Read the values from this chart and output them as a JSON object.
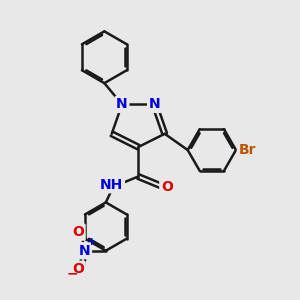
{
  "background_color": "#e8e8e8",
  "bond_color": "#1a1a1a",
  "bond_width": 1.8,
  "atom_colors": {
    "N": "#0000dd",
    "O": "#dd0000",
    "Br": "#bb5500",
    "H": "#666666",
    "C": "#1a1a1a"
  },
  "font_size_atoms": 10,
  "font_size_small": 8,
  "figsize": [
    3.0,
    3.0
  ],
  "dpi": 100
}
